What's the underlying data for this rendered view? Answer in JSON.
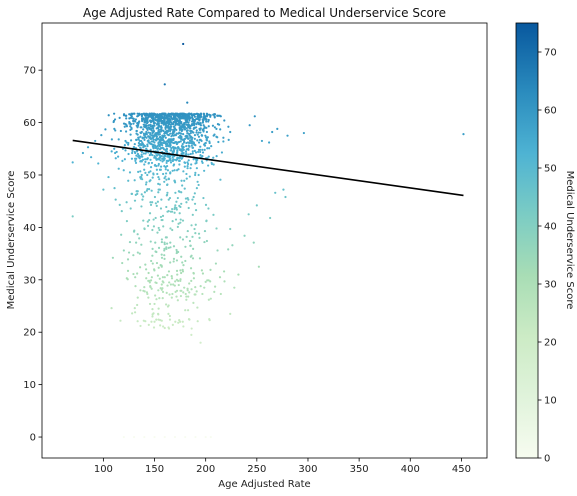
{
  "chart_data": {
    "type": "scatter",
    "title": "Age Adjusted Rate Compared to Medical Underservice Score",
    "xlabel": "Age Adjusted Rate",
    "ylabel": "Medical Underservice Score",
    "xlim": [
      40,
      475
    ],
    "ylim": [
      -4,
      79
    ],
    "xticks": [
      "100",
      "150",
      "200",
      "250",
      "300",
      "350",
      "400",
      "450"
    ],
    "yticks": [
      "0",
      "10",
      "20",
      "30",
      "40",
      "50",
      "60",
      "70"
    ],
    "grid": false,
    "colormap": "GnBu",
    "colorbar": {
      "label": "Medical Underservice Score",
      "range": [
        0,
        75
      ],
      "ticks": [
        "0",
        "10",
        "20",
        "30",
        "40",
        "50",
        "60",
        "70"
      ]
    },
    "regression_line": {
      "x": [
        70,
        452
      ],
      "y": [
        56.6,
        46.1
      ],
      "color": "#000000"
    },
    "points": [
      [
        178,
        75
      ],
      [
        160,
        67.3
      ],
      [
        182,
        63.8
      ],
      [
        452,
        57.8
      ],
      [
        296,
        58
      ],
      [
        270,
        58.8
      ],
      [
        265,
        58.2
      ],
      [
        280,
        57.5
      ],
      [
        248,
        61.2
      ],
      [
        243,
        59.5
      ],
      [
        255,
        56.5
      ],
      [
        262,
        56.2
      ],
      [
        70,
        52.4
      ],
      [
        70,
        42.1
      ],
      [
        108,
        24.6
      ],
      [
        131,
        23.8
      ],
      [
        175,
        22
      ],
      [
        195,
        18
      ],
      [
        186,
        19.5
      ],
      [
        224,
        23.5
      ],
      [
        228,
        28.5
      ],
      [
        232,
        31
      ],
      [
        252,
        32.5
      ],
      [
        214,
        30.5
      ],
      [
        278,
        45.8
      ],
      [
        276,
        47.2
      ],
      [
        268,
        46.6
      ],
      [
        263,
        41.8
      ],
      [
        250,
        44.2
      ],
      [
        242,
        42.5
      ],
      [
        238,
        38.4
      ],
      [
        247,
        37.1
      ],
      [
        120,
        35.6
      ],
      [
        126,
        37.2
      ],
      [
        133,
        31.2
      ],
      [
        140,
        28.6
      ],
      [
        143,
        27.3
      ],
      [
        150,
        25.4
      ],
      [
        158,
        26.5
      ],
      [
        166,
        29.1
      ],
      [
        172,
        27.9
      ],
      [
        180,
        24.2
      ],
      [
        190,
        27.2
      ],
      [
        200,
        29.6
      ],
      [
        205,
        26.4
      ],
      [
        210,
        33.1
      ],
      [
        218,
        31.6
      ],
      [
        222,
        35.8
      ],
      [
        100,
        47.2
      ],
      [
        95,
        52.2
      ],
      [
        105,
        49.6
      ],
      [
        112,
        45.3
      ],
      [
        118,
        43.1
      ],
      [
        123,
        41.2
      ],
      [
        128,
        46.4
      ],
      [
        130,
        39.2
      ],
      [
        88,
        53.4
      ],
      [
        92,
        56.5
      ],
      [
        98,
        57.6
      ],
      [
        85,
        55.3
      ],
      [
        80,
        54.2
      ],
      [
        102,
        58.7
      ],
      [
        110,
        60.1
      ],
      [
        115,
        56.8
      ],
      [
        120,
        0
      ],
      [
        130,
        0
      ],
      [
        140,
        0
      ],
      [
        150,
        0
      ],
      [
        160,
        0
      ],
      [
        170,
        0
      ],
      [
        180,
        0
      ],
      [
        190,
        0
      ],
      [
        200,
        0
      ],
      [
        205,
        0
      ]
    ],
    "random_fill": {
      "count": 1700,
      "x_center": 165,
      "x_spread": 22,
      "y_max": 61.7
    }
  }
}
